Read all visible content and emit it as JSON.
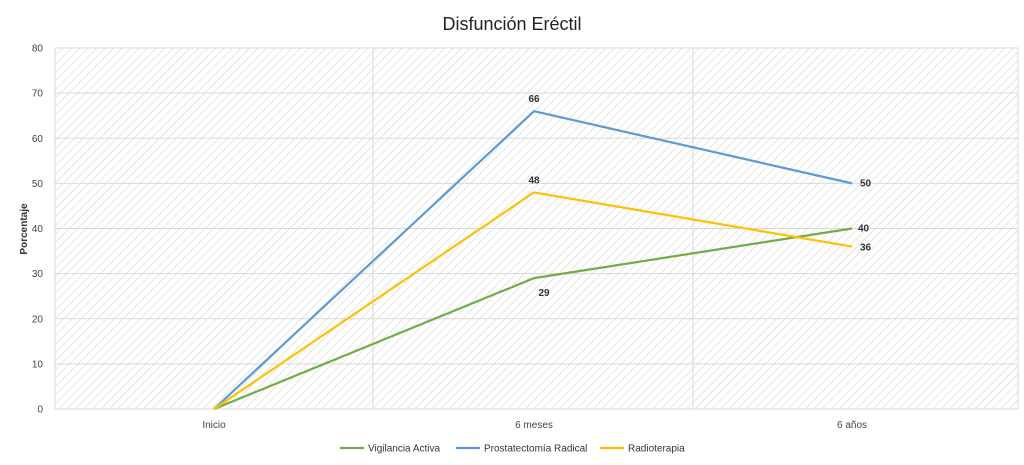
{
  "chart_data": {
    "type": "line",
    "title": "Disfunción Eréctil",
    "xlabel": "",
    "ylabel": "Porcentaje",
    "categories": [
      "Inicio",
      "6 meses",
      "6 años"
    ],
    "ylim": [
      0,
      80
    ],
    "yticks": [
      0,
      10,
      20,
      30,
      40,
      50,
      60,
      70,
      80
    ],
    "grid": true,
    "legend_position": "bottom",
    "series": [
      {
        "name": "Vigilancia Activa",
        "color": "#70AD47",
        "values": [
          0,
          29,
          40
        ],
        "labels": [
          null,
          "29",
          "40"
        ]
      },
      {
        "name": "Prostatectomía Radical",
        "color": "#5B9BD5",
        "values": [
          0,
          66,
          50
        ],
        "labels": [
          null,
          "66",
          "50"
        ]
      },
      {
        "name": "Radioterapia",
        "color": "#FFC000",
        "values": [
          0,
          48,
          36
        ],
        "labels": [
          null,
          "48",
          "36"
        ]
      }
    ]
  }
}
